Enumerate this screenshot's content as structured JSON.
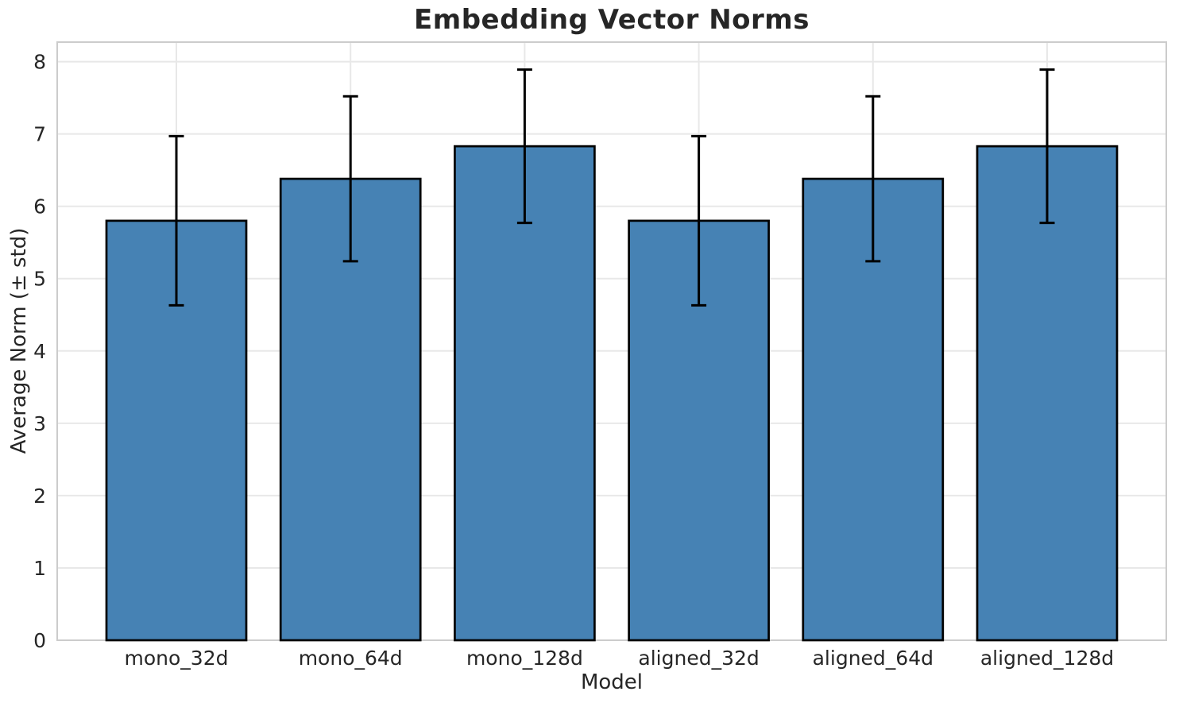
{
  "chart_data": {
    "type": "bar",
    "title": "Embedding Vector Norms",
    "xlabel": "Model",
    "ylabel": "Average Norm (± std)",
    "categories": [
      "mono_32d",
      "mono_64d",
      "mono_128d",
      "aligned_32d",
      "aligned_64d",
      "aligned_128d"
    ],
    "values": [
      5.8,
      6.38,
      6.83,
      5.8,
      6.38,
      6.83
    ],
    "errors": [
      1.17,
      1.14,
      1.06,
      1.17,
      1.14,
      1.06
    ],
    "yticks": [
      0,
      1,
      2,
      3,
      4,
      5,
      6,
      7,
      8
    ],
    "ylim": [
      0,
      8.27
    ],
    "grid": true,
    "legend_position": "none",
    "colors": {
      "bar_fill": "#4682b4",
      "bar_edge": "#000000",
      "error_bar": "#000000",
      "grid_line": "#e8e8e8",
      "spine": "#cccccc",
      "text": "#262626",
      "background": "#ffffff"
    }
  }
}
